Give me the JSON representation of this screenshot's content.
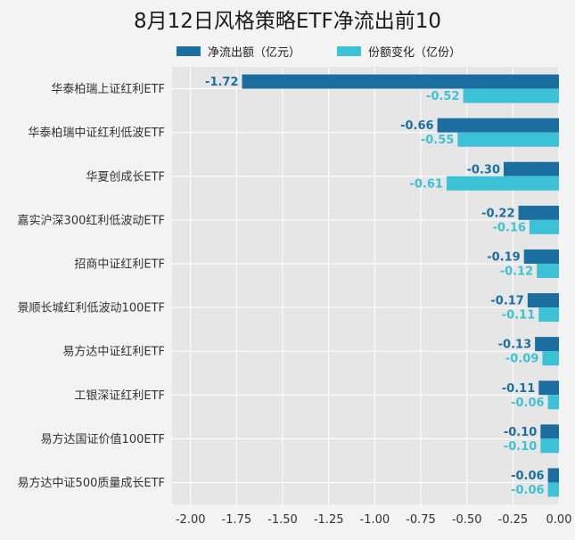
{
  "chart_data": {
    "type": "bar",
    "orientation": "horizontal",
    "title": "8月12日风格策略ETF净流出前10",
    "categories": [
      "华泰柏瑞上证红利ETF",
      "华泰柏瑞中证红利低波ETF",
      "华夏创成长ETF",
      "嘉实沪深300红利低波动ETF",
      "招商中证红利ETF",
      "景顺长城红利低波动100ETF",
      "易方达中证红利ETF",
      "工银深证红利ETF",
      "易方达国证价值100ETF",
      "易方达中证500质量成长ETF"
    ],
    "series": [
      {
        "name": "净流出额（亿元）",
        "color": "#1b6fa0",
        "values": [
          -1.72,
          -0.66,
          -0.3,
          -0.22,
          -0.19,
          -0.17,
          -0.13,
          -0.11,
          -0.1,
          -0.06
        ],
        "labels": [
          "-1.72",
          "-0.66",
          "-0.30",
          "-0.22",
          "-0.19",
          "-0.17",
          "-0.13",
          "-0.11",
          "-0.10",
          "-0.06"
        ]
      },
      {
        "name": "份额变化（亿份）",
        "color": "#3bc2d6",
        "values": [
          -0.52,
          -0.55,
          -0.61,
          -0.16,
          -0.12,
          -0.11,
          -0.09,
          -0.06,
          -0.1,
          -0.06
        ],
        "labels": [
          "-0.52",
          "-0.55",
          "-0.61",
          "-0.16",
          "-0.12",
          "-0.11",
          "-0.09",
          "-0.06",
          "-0.10",
          "-0.06"
        ]
      }
    ],
    "xlim": [
      -2.1,
      0.0
    ],
    "xticks": [
      -2.0,
      -1.75,
      -1.5,
      -1.25,
      -1.0,
      -0.75,
      -0.5,
      -0.25,
      0.0
    ],
    "xtick_labels": [
      "-2.00",
      "-1.75",
      "-1.50",
      "-1.25",
      "-1.00",
      "-0.75",
      "-0.50",
      "-0.25",
      "0.00"
    ],
    "grid": true,
    "legend_position": "top"
  }
}
